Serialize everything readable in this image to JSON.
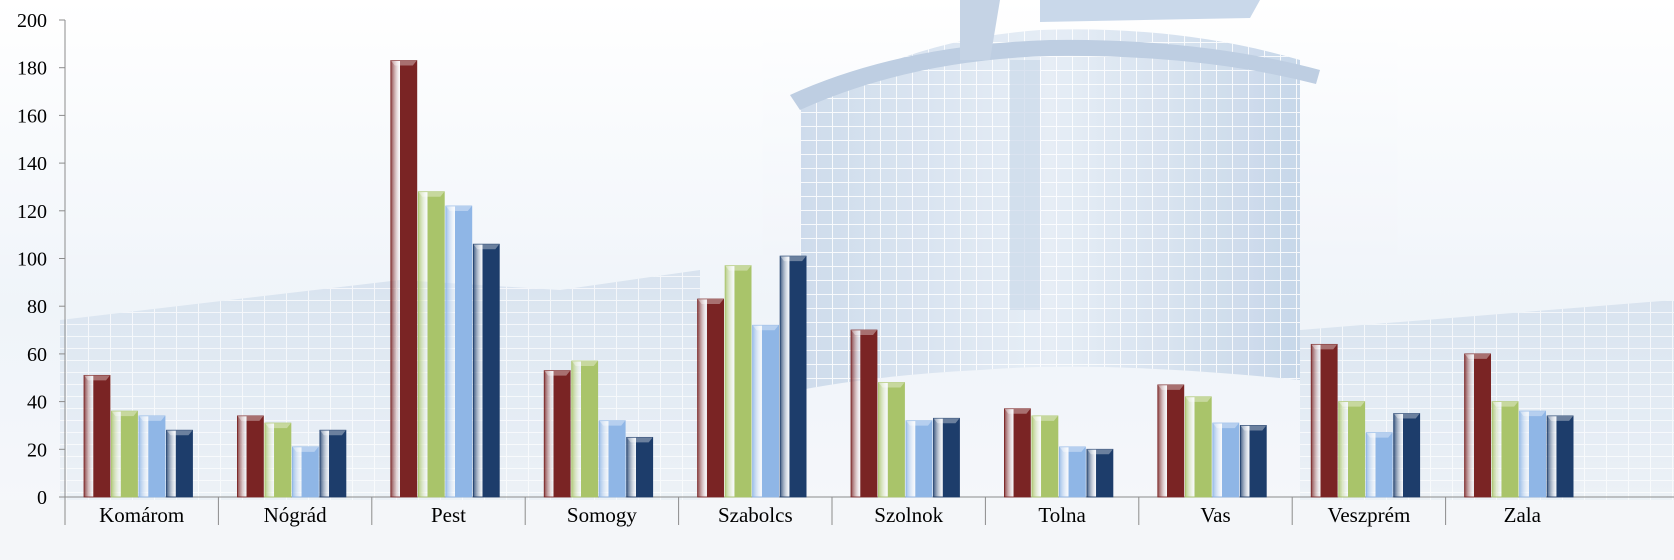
{
  "chart_data": {
    "type": "bar",
    "title": "",
    "xlabel": "",
    "ylabel": "",
    "ylim": [
      0,
      200
    ],
    "yticks": [
      0,
      20,
      40,
      60,
      80,
      100,
      120,
      140,
      160,
      180,
      200
    ],
    "grid": false,
    "legend": "none",
    "categories": [
      "Komárom",
      "Nógrád",
      "Pest",
      "Somogy",
      "Szabolcs",
      "Szolnok",
      "Tolna",
      "Vas",
      "Veszprém",
      "Zala"
    ],
    "series": [
      {
        "color": "#7a2424",
        "values": [
          51,
          34,
          183,
          53,
          83,
          70,
          37,
          47,
          64,
          60
        ]
      },
      {
        "color": "#a9c46a",
        "values": [
          36,
          31,
          128,
          57,
          97,
          48,
          34,
          42,
          40,
          40
        ]
      },
      {
        "color": "#8fb6e6",
        "values": [
          34,
          21,
          122,
          32,
          72,
          32,
          21,
          31,
          27,
          36
        ]
      },
      {
        "color": "#1d3d6b",
        "values": [
          28,
          28,
          106,
          25,
          101,
          33,
          20,
          30,
          35,
          34
        ]
      }
    ],
    "background": "faded photograph of a curved glass office building"
  }
}
